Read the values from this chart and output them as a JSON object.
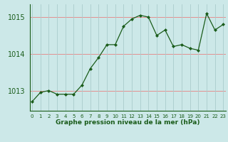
{
  "x": [
    0,
    1,
    2,
    3,
    4,
    5,
    6,
    7,
    8,
    9,
    10,
    11,
    12,
    13,
    14,
    15,
    16,
    17,
    18,
    19,
    20,
    21,
    22,
    23
  ],
  "y": [
    1012.7,
    1012.95,
    1013.0,
    1012.9,
    1012.9,
    1012.9,
    1013.15,
    1013.6,
    1013.9,
    1014.25,
    1014.25,
    1014.75,
    1014.95,
    1015.05,
    1015.0,
    1014.5,
    1014.65,
    1014.2,
    1014.25,
    1014.15,
    1014.1,
    1015.1,
    1014.65,
    1014.8
  ],
  "line_color": "#1a5c1a",
  "marker_color": "#1a5c1a",
  "bg_color": "#cce8e8",
  "vgrid_color": "#aacccc",
  "hgrid_color": "#e88080",
  "xlabel": "Graphe pression niveau de la mer (hPa)",
  "xlabel_color": "#1a5c1a",
  "tick_label_color": "#1a5c1a",
  "ylim": [
    1012.45,
    1015.35
  ],
  "yticks": [
    1013,
    1014,
    1015
  ],
  "xticks": [
    0,
    1,
    2,
    3,
    4,
    5,
    6,
    7,
    8,
    9,
    10,
    11,
    12,
    13,
    14,
    15,
    16,
    17,
    18,
    19,
    20,
    21,
    22,
    23
  ],
  "xlim": [
    -0.3,
    23.3
  ]
}
